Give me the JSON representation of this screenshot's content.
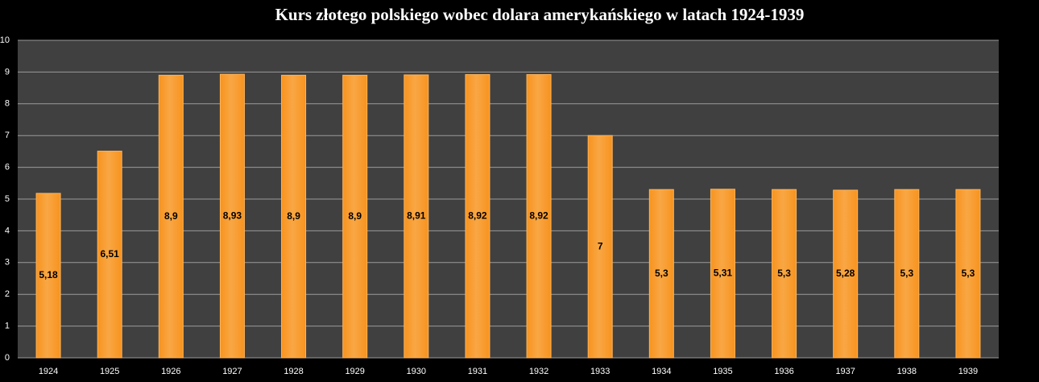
{
  "chart_data": {
    "type": "bar",
    "title": "Kurs złotego polskiego wobec dolara amerykańskiego  w latach 1924-1939",
    "categories": [
      "1924",
      "1925",
      "1926",
      "1927",
      "1928",
      "1929",
      "1930",
      "1931",
      "1932",
      "1933",
      "1934",
      "1935",
      "1936",
      "1937",
      "1938",
      "1939"
    ],
    "values": [
      5.18,
      6.51,
      8.9,
      8.93,
      8.9,
      8.9,
      8.91,
      8.92,
      8.92,
      7,
      5.3,
      5.31,
      5.3,
      5.28,
      5.3,
      5.3
    ],
    "value_labels": [
      "5,18",
      "6,51",
      "8,9",
      "8,93",
      "8,9",
      "8,9",
      "8,91",
      "8,92",
      "8,92",
      "7",
      "5,3",
      "5,31",
      "5,3",
      "5,28",
      "5,3",
      "5,3"
    ],
    "color": "#f7931e",
    "ylim": [
      0,
      10
    ],
    "yticks": [
      0,
      1,
      2,
      3,
      4,
      5,
      6,
      7,
      8,
      9,
      10
    ],
    "grid": true
  }
}
